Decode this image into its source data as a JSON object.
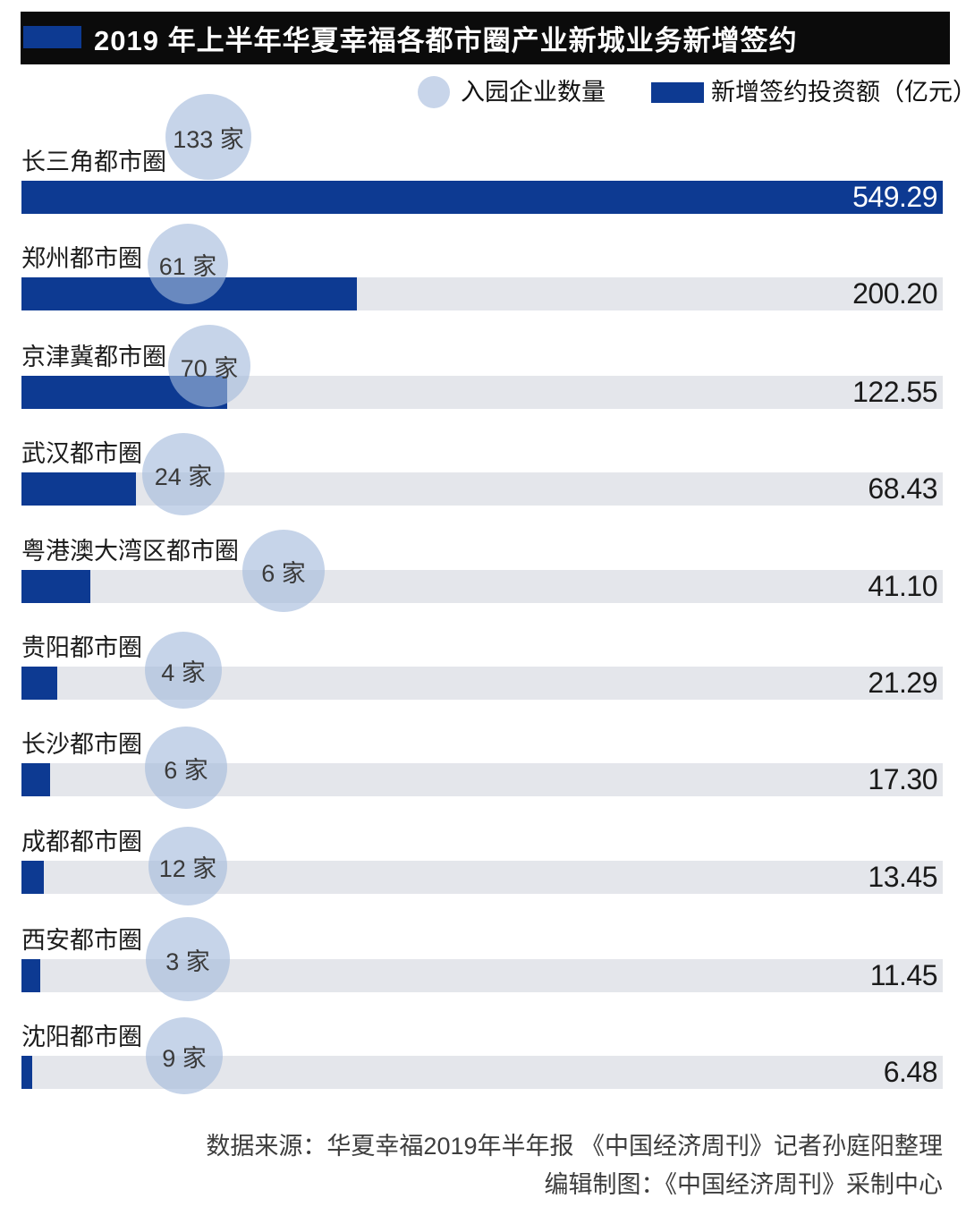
{
  "header": {
    "title": "2019 年上半年华夏幸福各都市圈产业新城业务新增签约"
  },
  "legend": {
    "count_label": "入园企业数量",
    "value_label": "新增签约投资额（亿元）"
  },
  "colors": {
    "bar_blue": "#0d3a92",
    "track_gray": "#e4e6eb",
    "bubble_blue": "#c8d5ea",
    "header_black": "#0b0b0b"
  },
  "chart_data": {
    "type": "bar",
    "title": "2019 年上半年华夏幸福各都市圈产业新城业务新增签约",
    "orientation": "horizontal",
    "xlim": [
      0,
      549.29
    ],
    "grid": false,
    "legend_position": "top",
    "series": [
      {
        "name": "入园企业数量",
        "unit": "家",
        "values": [
          133,
          61,
          70,
          24,
          6,
          4,
          6,
          12,
          3,
          9
        ]
      },
      {
        "name": "新增签约投资额（亿元）",
        "unit": "亿元",
        "values": [
          549.29,
          200.2,
          122.55,
          68.43,
          41.1,
          21.29,
          17.3,
          13.45,
          11.45,
          6.48
        ]
      }
    ],
    "categories": [
      "长三角都市圈",
      "郑州都市圈",
      "京津冀都市圈",
      "武汉都市圈",
      "粤港澳大湾区都市圈",
      "贵阳都市圈",
      "长沙都市圈",
      "成都都市圈",
      "西安都市圈",
      "沈阳都市圈"
    ],
    "rows": [
      {
        "label": "长三角都市圈",
        "count": 133,
        "count_label": "133 家",
        "value": 549.29,
        "value_label": "549.29"
      },
      {
        "label": "郑州都市圈",
        "count": 61,
        "count_label": "61 家",
        "value": 200.2,
        "value_label": "200.20"
      },
      {
        "label": "京津冀都市圈",
        "count": 70,
        "count_label": "70 家",
        "value": 122.55,
        "value_label": "122.55"
      },
      {
        "label": "武汉都市圈",
        "count": 24,
        "count_label": "24 家",
        "value": 68.43,
        "value_label": "68.43"
      },
      {
        "label": "粤港澳大湾区都市圈",
        "count": 6,
        "count_label": "6 家",
        "value": 41.1,
        "value_label": "41.10"
      },
      {
        "label": "贵阳都市圈",
        "count": 4,
        "count_label": "4 家",
        "value": 21.29,
        "value_label": "21.29"
      },
      {
        "label": "长沙都市圈",
        "count": 6,
        "count_label": "6 家",
        "value": 17.3,
        "value_label": "17.30"
      },
      {
        "label": "成都都市圈",
        "count": 12,
        "count_label": "12 家",
        "value": 13.45,
        "value_label": "13.45"
      },
      {
        "label": "西安都市圈",
        "count": 3,
        "count_label": "3 家",
        "value": 11.45,
        "value_label": "11.45"
      },
      {
        "label": "沈阳都市圈",
        "count": 9,
        "count_label": "9 家",
        "value": 6.48,
        "value_label": "6.48"
      }
    ]
  },
  "footer": {
    "source": "数据来源：华夏幸福2019年半年报  《中国经济周刊》记者孙庭阳整理",
    "credit": "编辑制图：《中国经济周刊》采制中心"
  }
}
